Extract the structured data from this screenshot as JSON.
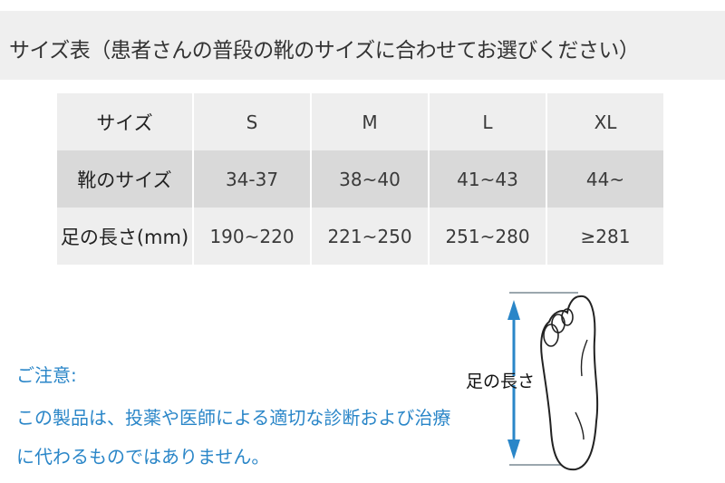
{
  "header": {
    "title": "サイズ表（患者さんの普段の靴のサイズに合わせてお選びください）"
  },
  "table": {
    "rows": [
      {
        "label": "サイズ",
        "values": [
          "S",
          "M",
          "L",
          "XL"
        ]
      },
      {
        "label": "靴のサイズ",
        "values": [
          "34-37",
          "38~40",
          "41~43",
          "44~"
        ]
      },
      {
        "label": "足の長さ(mm)",
        "values": [
          "190~220",
          "221~250",
          "251~280",
          "≥281"
        ]
      }
    ]
  },
  "notice": {
    "heading": "ご注意:",
    "line1": "この製品は、投薬や医師による適切な診断および治療",
    "line2": "に代わるものではありません。",
    "color": "#2a86c8"
  },
  "diagram": {
    "label": "足の長さ",
    "icon": "foot-length-icon",
    "arrow_color": "#2a86c8"
  }
}
